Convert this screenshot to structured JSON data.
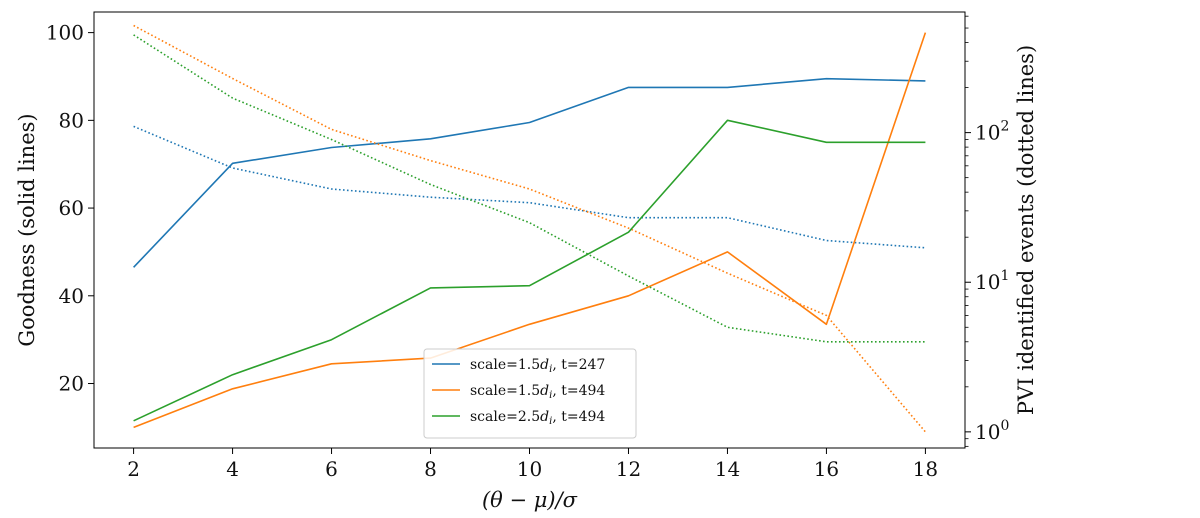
{
  "chart_data": {
    "type": "line",
    "x": [
      2,
      4,
      6,
      8,
      10,
      12,
      14,
      16,
      18
    ],
    "x_ticks": [
      2,
      4,
      6,
      8,
      10,
      12,
      14,
      16,
      18
    ],
    "xlabel": "(θ − μ)/σ",
    "xlim": [
      1.2,
      18.8
    ],
    "left_axis": {
      "label": "Goodness (solid lines)",
      "ylim": [
        5.3,
        104.7
      ],
      "ticks": [
        20,
        40,
        60,
        80,
        100
      ]
    },
    "right_axis": {
      "label": "PVI identified events (dotted lines)",
      "scale": "log",
      "ylim": [
        0.78,
        640
      ],
      "ticks": [
        {
          "value": 1,
          "base": "10",
          "exp": "0"
        },
        {
          "value": 10,
          "base": "10",
          "exp": "1"
        },
        {
          "value": 100,
          "base": "10",
          "exp": "2"
        }
      ]
    },
    "series": [
      {
        "name": "scale=1.5d_i, t=247",
        "legend": {
          "prefix": "scale=1.5",
          "sym": "d",
          "sub": "i",
          "suffix": ", t=247"
        },
        "color": "#1f77b4",
        "goodness": [
          46.5,
          70.2,
          73.8,
          75.8,
          79.5,
          87.5,
          87.5,
          89.5,
          89.0
        ],
        "events": [
          110,
          58,
          42,
          37,
          34,
          27,
          27,
          19,
          17
        ]
      },
      {
        "name": "scale=1.5d_i, t=494",
        "legend": {
          "prefix": "scale=1.5",
          "sym": "d",
          "sub": "i",
          "suffix": ", t=494"
        },
        "color": "#ff7f0e",
        "goodness": [
          10.0,
          18.8,
          24.5,
          25.8,
          33.5,
          40.0,
          50.0,
          33.5,
          100.0
        ],
        "events": [
          520,
          230,
          105,
          65,
          42,
          23,
          11.5,
          6,
          1.0
        ]
      },
      {
        "name": "scale=2.5d_i, t=494",
        "legend": {
          "prefix": "scale=2.5",
          "sym": "d",
          "sub": "i",
          "suffix": ", t=494"
        },
        "color": "#2ca02c",
        "goodness": [
          11.5,
          22.0,
          30.0,
          41.8,
          42.3,
          54.5,
          80.0,
          75.0,
          75.0
        ],
        "events": [
          450,
          170,
          90,
          45,
          25,
          11,
          5,
          4,
          4
        ]
      }
    ],
    "legend_position": "bottom-center"
  }
}
